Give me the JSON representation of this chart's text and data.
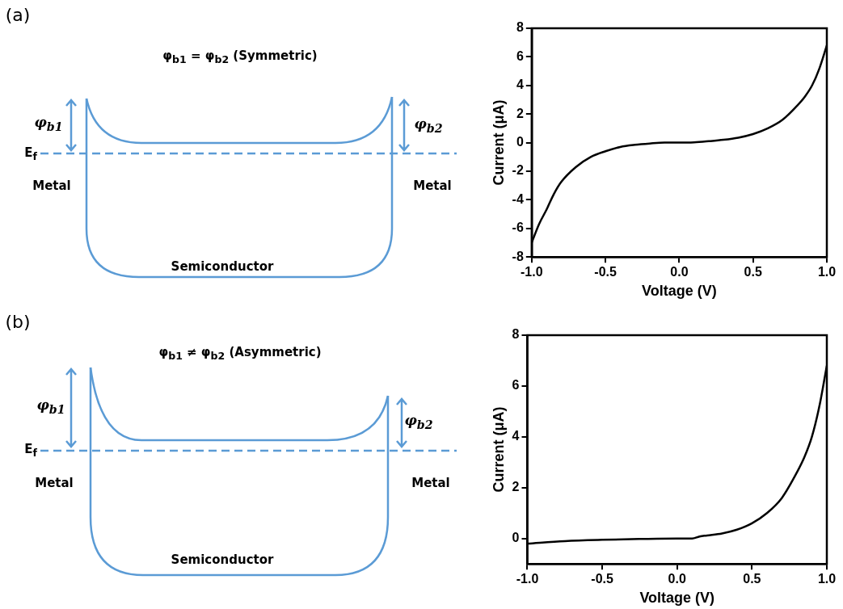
{
  "chart_data": [
    {
      "type": "other",
      "title": "φ$_{b1}$ = φ$_{b2}$ (Symmetric)",
      "annotations": [
        "(a)",
        "φ$_{b1}$",
        "φ$_{b2}$",
        "E$_{f}$",
        "Metal",
        "Metal",
        "Semiconductor"
      ]
    },
    {
      "type": "line",
      "xlabel": "Voltage (V)",
      "ylabel": "Current (μA)",
      "xlim": [
        -1,
        1
      ],
      "xticks": [
        {
          "value": -1,
          "label": "-1.0"
        },
        {
          "value": -0.5,
          "label": "-0.5"
        },
        {
          "value": 0,
          "label": "0.0"
        },
        {
          "value": 0.5,
          "label": "0.5"
        },
        {
          "value": 1,
          "label": "1.0"
        }
      ],
      "ylim": [
        -8,
        8
      ],
      "yticks": [
        -8,
        -6,
        -4,
        -2,
        0,
        2,
        4,
        6,
        8
      ],
      "grid": false,
      "legend": false,
      "series": [
        {
          "color": "#000000",
          "x": [
            -1,
            -0.95,
            -0.9,
            -0.85,
            -0.8,
            -0.7,
            -0.6,
            -0.5,
            -0.4,
            -0.3,
            -0.2,
            -0.1,
            0,
            0.1,
            0.2,
            0.3,
            0.4,
            0.5,
            0.6,
            0.7,
            0.8,
            0.85,
            0.9,
            0.95,
            1
          ],
          "values": [
            -7,
            -5.7,
            -4.7,
            -3.6,
            -2.75,
            -1.7,
            -1,
            -0.6,
            -0.3,
            -0.15,
            -0.06,
            0,
            0,
            0.02,
            0.1,
            0.2,
            0.35,
            0.6,
            1,
            1.6,
            2.6,
            3.2,
            4,
            5.2,
            6.8
          ]
        }
      ]
    },
    {
      "type": "other",
      "title": "φ$_{b1}$ ≠ φ$_{b2}$ (Asymmetric)",
      "annotations": [
        "(b)",
        "φ$_{b1}$",
        "φ$_{b2}$",
        "E$_{f}$",
        "Metal",
        "Metal",
        "Semiconductor"
      ]
    },
    {
      "type": "line",
      "xlabel": "Voltage (V)",
      "ylabel": "Current (μA)",
      "xlim": [
        -1,
        1
      ],
      "xticks": [
        {
          "value": -1,
          "label": "-1.0"
        },
        {
          "value": -0.5,
          "label": "-0.5"
        },
        {
          "value": 0,
          "label": "0.0"
        },
        {
          "value": 0.5,
          "label": "0.5"
        },
        {
          "value": 1,
          "label": "1.0"
        }
      ],
      "ylim": [
        -1,
        8
      ],
      "yticks": [
        0,
        2,
        4,
        6,
        8
      ],
      "grid": false,
      "legend": false,
      "series": [
        {
          "color": "#000000",
          "x": [
            -1,
            -0.75,
            -0.5,
            -0.25,
            0,
            0.1,
            0.15,
            0.2,
            0.3,
            0.4,
            0.5,
            0.6,
            0.7,
            0.8,
            0.85,
            0.9,
            0.95,
            1
          ],
          "values": [
            -0.2,
            -0.1,
            -0.05,
            -0.02,
            0,
            0,
            0.08,
            0.12,
            0.2,
            0.35,
            0.6,
            1,
            1.6,
            2.6,
            3.2,
            4,
            5.2,
            6.8
          ]
        }
      ]
    }
  ]
}
